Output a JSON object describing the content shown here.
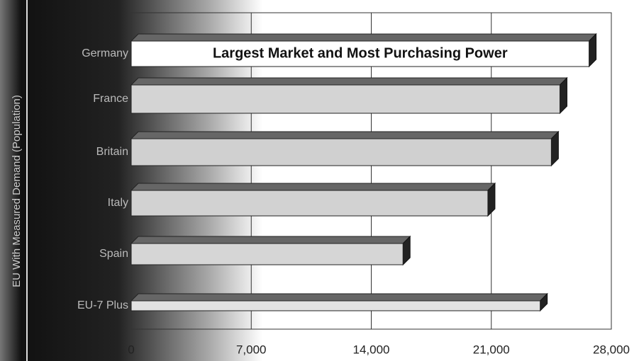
{
  "chart_data": {
    "type": "hbar",
    "ylabel": "EU With Measured Demand (Population)",
    "annotation": "Largest Market and Most Purchasing Power",
    "categories": [
      "Germany",
      "France",
      "Britain",
      "Italy",
      "Spain",
      "EU-7 Plus"
    ],
    "values": [
      26700,
      25000,
      24500,
      20800,
      15850,
      23850
    ],
    "colors": [
      "#ffffff",
      "#d4d4d4",
      "#d0d0d0",
      "#d2d2d2",
      "#d6d6d6",
      "#e2e2e2"
    ],
    "xlim": [
      0,
      28000
    ],
    "xticks": [
      0,
      {
        "value": 7000,
        "label": "7,000"
      },
      {
        "value": 14000,
        "label": "14,000"
      },
      {
        "value": 21000,
        "label": "21,000"
      },
      {
        "value": 28000,
        "label": "28,000"
      }
    ],
    "grid": true
  }
}
